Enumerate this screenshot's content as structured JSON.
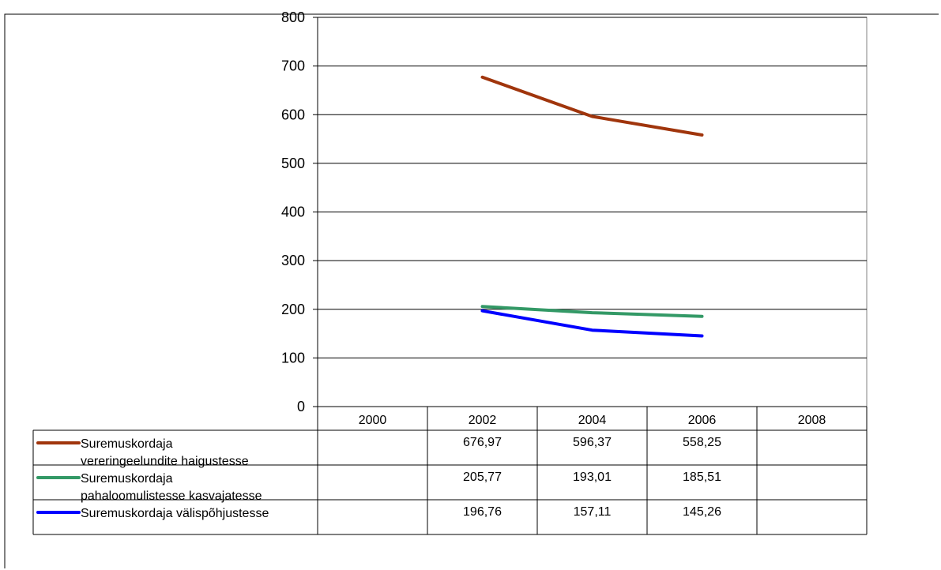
{
  "chart_data": {
    "type": "line",
    "categories": [
      "2000",
      "2002",
      "2004",
      "2006",
      "2008"
    ],
    "ylim": [
      0,
      800
    ],
    "yticks": [
      "0",
      "100",
      "200",
      "300",
      "400",
      "500",
      "600",
      "700",
      "800"
    ],
    "grid": true,
    "legend": "data-table-left",
    "series": [
      {
        "name_lines": [
          "Suremuskordaja",
          "vereringeelundite haigustesse"
        ],
        "color": "#a0350c",
        "values": [
          null,
          676.97,
          596.37,
          558.25,
          null
        ],
        "labels": [
          "",
          "676,97",
          "596,37",
          "558,25",
          ""
        ]
      },
      {
        "name_lines": [
          "Suremuskordaja",
          "pahaloomulistesse kasvajatesse"
        ],
        "color": "#339966",
        "values": [
          null,
          205.77,
          193.01,
          185.51,
          null
        ],
        "labels": [
          "",
          "205,77",
          "193,01",
          "185,51",
          ""
        ]
      },
      {
        "name_lines": [
          "Suremuskordaja välispõhjustesse"
        ],
        "color": "#0000ff",
        "values": [
          null,
          196.76,
          157.11,
          145.26,
          null
        ],
        "labels": [
          "",
          "196,76",
          "157,11",
          "145,26",
          ""
        ]
      }
    ]
  }
}
